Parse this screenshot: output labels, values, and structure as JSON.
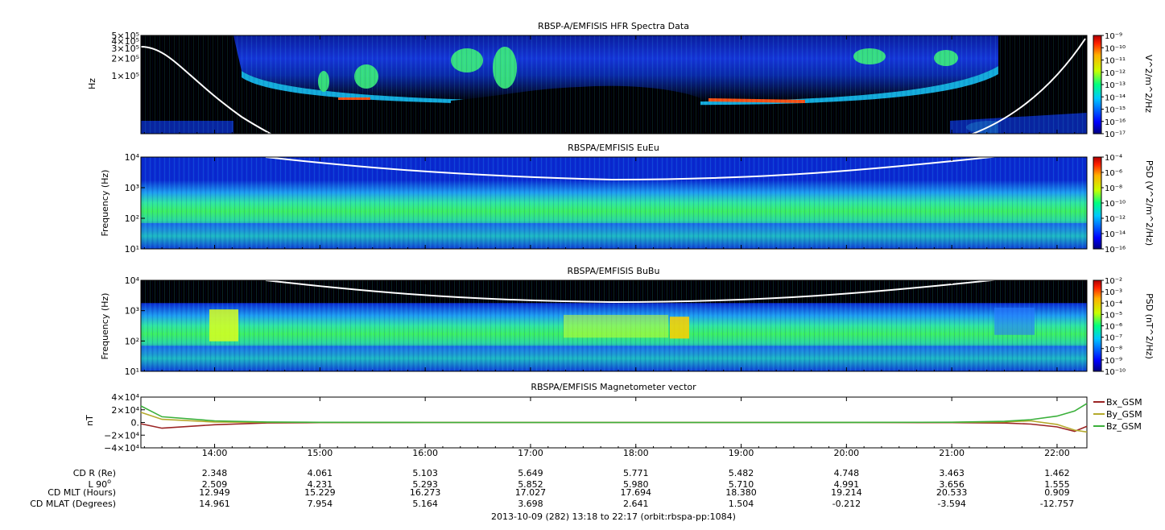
{
  "footer": "2013-10-09 (282) 13:18 to 22:17 (orbit:rbspa-pp:1084)",
  "time_axis": {
    "start": "13:18",
    "end": "22:17",
    "ticks": [
      "14:00",
      "15:00",
      "16:00",
      "17:00",
      "18:00",
      "19:00",
      "20:00",
      "21:00",
      "22:00"
    ]
  },
  "ephemeris": {
    "rows": [
      {
        "label": "CD R (Re)",
        "values": [
          "2.348",
          "4.061",
          "5.103",
          "5.649",
          "5.771",
          "5.482",
          "4.748",
          "3.463",
          "1.462"
        ]
      },
      {
        "label": "L 90",
        "sup": "o",
        "values": [
          "2.509",
          "4.231",
          "5.293",
          "5.852",
          "5.980",
          "5.710",
          "4.991",
          "3.656",
          "1.555"
        ]
      },
      {
        "label": "CD MLT (Hours)",
        "values": [
          "12.949",
          "15.229",
          "16.273",
          "17.027",
          "17.694",
          "18.380",
          "19.214",
          "20.533",
          "0.909"
        ]
      },
      {
        "label": "CD MLAT (Degrees)",
        "values": [
          "14.961",
          "7.954",
          "5.164",
          "3.698",
          "2.641",
          "1.504",
          "-0.212",
          "-3.594",
          "-12.757"
        ]
      }
    ]
  },
  "chart_data": [
    {
      "type": "heatmap",
      "title": "RBSP-A/EMFISIS  HFR Spectra Data",
      "ylabel": "Hz",
      "yscale": "log",
      "ylim": [
        10000,
        500000
      ],
      "yticks": [
        {
          "value": 100000,
          "label": "1×10⁵"
        },
        {
          "value": 200000,
          "label": "2×10⁵"
        },
        {
          "value": 300000,
          "label": "3×10⁵"
        },
        {
          "value": 400000,
          "label": "4×10⁵"
        },
        {
          "value": 500000,
          "label": "5×10⁵"
        }
      ],
      "colorbar": {
        "label": "V^2/m^2/Hz",
        "ticks": [
          "10⁻⁹",
          "10⁻¹⁰",
          "10⁻¹¹",
          "10⁻¹²",
          "10⁻¹³",
          "10⁻¹⁴",
          "10⁻¹⁵",
          "10⁻¹⁶",
          "10⁻¹⁷"
        ]
      }
    },
    {
      "type": "heatmap",
      "title": "RBSPA/EMFISIS  EuEu",
      "ylabel": "Frequency (Hz)",
      "yscale": "log",
      "ylim": [
        10,
        10000
      ],
      "yticks": [
        "10¹",
        "10²",
        "10³",
        "10⁴"
      ],
      "colorbar": {
        "label": "PSD (V^2/m^2/Hz)",
        "ticks": [
          "10⁻⁴",
          "10⁻⁶",
          "10⁻⁸",
          "10⁻¹⁰",
          "10⁻¹²",
          "10⁻¹⁴",
          "10⁻¹⁶"
        ]
      }
    },
    {
      "type": "heatmap",
      "title": "RBSPA/EMFISIS  BuBu",
      "ylabel": "Frequency (Hz)",
      "yscale": "log",
      "ylim": [
        10,
        10000
      ],
      "yticks": [
        "10¹",
        "10²",
        "10³",
        "10⁴"
      ],
      "colorbar": {
        "label": "PSD (nT^2/Hz)",
        "ticks": [
          "10⁻²",
          "10⁻³",
          "10⁻⁴",
          "10⁻⁵",
          "10⁻⁶",
          "10⁻⁷",
          "10⁻⁸",
          "10⁻⁹",
          "10⁻¹⁰"
        ]
      }
    },
    {
      "type": "line",
      "title": "RBSPA/EMFISIS  Magnetometer vector",
      "ylabel": "nT",
      "ylim": [
        -40000,
        40000
      ],
      "yticks": [
        {
          "value": 40000,
          "label": "4×10⁴"
        },
        {
          "value": 20000,
          "label": "2×10⁴"
        },
        {
          "value": 0,
          "label": "0."
        },
        {
          "value": -20000,
          "label": "−2×10⁴"
        },
        {
          "value": -40000,
          "label": "−4×10⁴"
        }
      ],
      "x": [
        "13:18",
        "13:30",
        "14:00",
        "14:30",
        "15:00",
        "16:00",
        "17:00",
        "18:00",
        "19:00",
        "20:00",
        "21:00",
        "21:30",
        "21:45",
        "22:00",
        "22:10",
        "22:17"
      ],
      "series": [
        {
          "name": "Bx_GSM",
          "color": "#9b2424",
          "values": [
            -2000,
            -9000,
            -3500,
            -800,
            -200,
            -50,
            -20,
            -10,
            -20,
            -60,
            -300,
            -900,
            -2500,
            -7000,
            -14000,
            -6000
          ]
        },
        {
          "name": "By_GSM",
          "color": "#b5aa2c",
          "values": [
            16000,
            5000,
            800,
            300,
            100,
            30,
            10,
            5,
            10,
            40,
            200,
            900,
            2500,
            -3000,
            -12000,
            -15000
          ]
        },
        {
          "name": "Bz_GSM",
          "color": "#3bb03b",
          "values": [
            26000,
            9000,
            2500,
            700,
            200,
            60,
            30,
            20,
            30,
            80,
            400,
            1800,
            4500,
            10000,
            18000,
            30000
          ]
        }
      ]
    }
  ]
}
